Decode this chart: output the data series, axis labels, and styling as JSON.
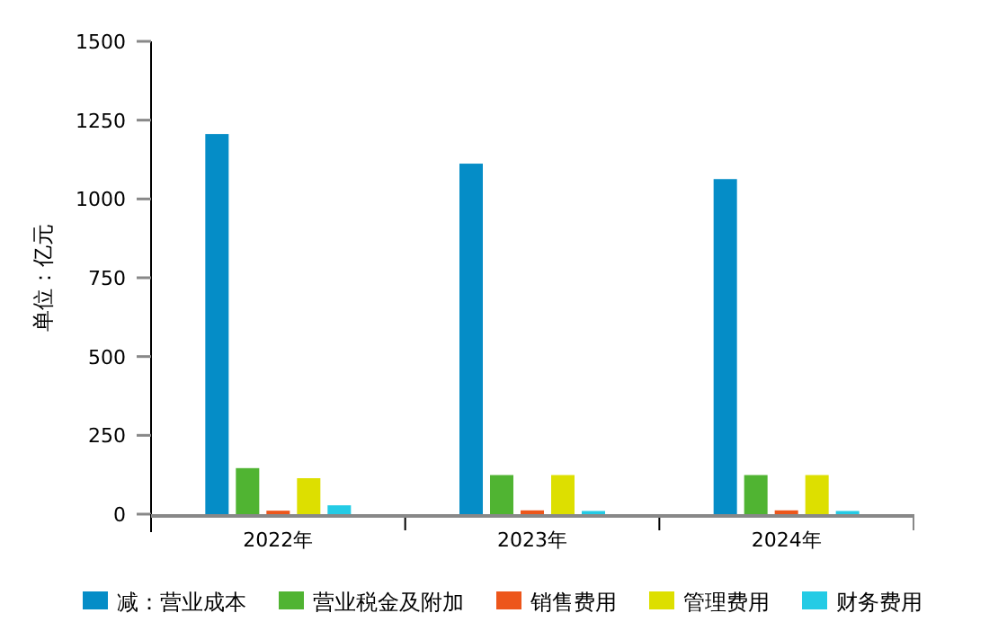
{
  "chart_data": {
    "type": "bar",
    "ylabel": "单位：亿元",
    "categories": [
      "2022年",
      "2023年",
      "2024年"
    ],
    "series": [
      {
        "name": "减：营业成本",
        "color": "#058dc7",
        "values": [
          1206,
          1112,
          1063
        ]
      },
      {
        "name": "营业税金及附加",
        "color": "#50b432",
        "values": [
          146,
          124,
          124
        ]
      },
      {
        "name": "销售费用",
        "color": "#ed561b",
        "values": [
          11,
          12,
          12
        ]
      },
      {
        "name": "管理费用",
        "color": "#dddf00",
        "values": [
          114,
          124,
          124
        ]
      },
      {
        "name": "财务费用",
        "color": "#24cbe5",
        "values": [
          28,
          10,
          10
        ]
      }
    ],
    "ylim": [
      0,
      1500
    ],
    "yticks": [
      0,
      250,
      500,
      750,
      1000,
      1250,
      1500
    ],
    "grid": false,
    "legend": "bottom"
  }
}
